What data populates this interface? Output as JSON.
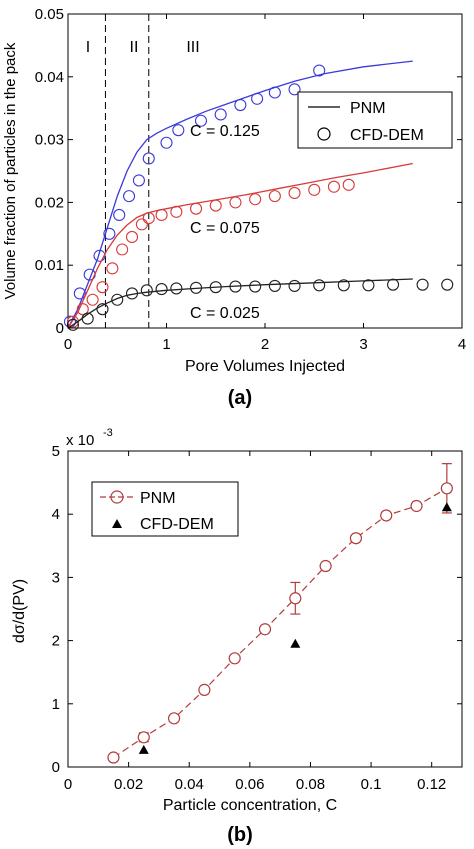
{
  "chart_data": [
    {
      "panel_label": "(a)",
      "type": "scatter",
      "xlabel": "Pore Volumes Injected",
      "ylabel": "Volume fraction of particles in the pack",
      "xlim": [
        0,
        4
      ],
      "ylim": [
        0,
        0.05
      ],
      "xticks": [
        "0",
        "1",
        "2",
        "3",
        "4"
      ],
      "yticks": [
        "0",
        "0.01",
        "0.02",
        "0.03",
        "0.04",
        "0.05"
      ],
      "grid": false,
      "legend_position": "top-right",
      "legend": [
        {
          "label": "PNM",
          "marker": "line"
        },
        {
          "label": "CFD-DEM",
          "marker": "circle"
        }
      ],
      "regions": [
        {
          "label": "I",
          "x_from": 0,
          "x_to": 0.38
        },
        {
          "label": "II",
          "x_from": 0.38,
          "x_to": 0.82
        },
        {
          "label": "III",
          "x_from": 0.82,
          "x_to": 4
        }
      ],
      "region_boundaries_x": [
        0.38,
        0.82
      ],
      "series": [
        {
          "annotation": "C = 0.125",
          "color": "#3a3adb",
          "pnm_x": [
            0,
            0.1,
            0.2,
            0.3,
            0.4,
            0.5,
            0.6,
            0.7,
            0.8,
            0.9,
            1.0,
            1.2,
            1.4,
            1.6,
            1.8,
            2.0,
            2.3,
            2.6,
            3.0,
            3.5
          ],
          "pnm_y": [
            0,
            0.003,
            0.007,
            0.011,
            0.016,
            0.021,
            0.025,
            0.028,
            0.03,
            0.031,
            0.0318,
            0.0332,
            0.0345,
            0.0356,
            0.0367,
            0.0378,
            0.0393,
            0.0405,
            0.0416,
            0.0425
          ],
          "cfd_x": [
            0.02,
            0.12,
            0.22,
            0.32,
            0.42,
            0.52,
            0.62,
            0.72,
            0.82,
            1.0,
            1.12,
            1.35,
            1.55,
            1.75,
            1.92,
            2.1,
            2.3,
            2.55
          ],
          "cfd_y": [
            0.001,
            0.0055,
            0.0085,
            0.0115,
            0.015,
            0.018,
            0.021,
            0.0235,
            0.027,
            0.0295,
            0.0315,
            0.033,
            0.034,
            0.0355,
            0.0365,
            0.0375,
            0.038,
            0.041
          ]
        },
        {
          "annotation": "C = 0.075",
          "color": "#d83a3a",
          "pnm_x": [
            0,
            0.1,
            0.2,
            0.3,
            0.4,
            0.5,
            0.6,
            0.7,
            0.8,
            0.9,
            1.0,
            1.2,
            1.5,
            1.8,
            2.1,
            2.4,
            2.7,
            3.0,
            3.5
          ],
          "pnm_y": [
            0,
            0.0025,
            0.006,
            0.0095,
            0.0125,
            0.0148,
            0.0164,
            0.0176,
            0.0183,
            0.0187,
            0.019,
            0.0196,
            0.0204,
            0.0212,
            0.0221,
            0.023,
            0.0239,
            0.0247,
            0.0262
          ],
          "cfd_x": [
            0.05,
            0.15,
            0.25,
            0.35,
            0.45,
            0.55,
            0.65,
            0.75,
            0.82,
            0.95,
            1.1,
            1.3,
            1.5,
            1.7,
            1.9,
            2.1,
            2.3,
            2.5,
            2.7,
            2.85
          ],
          "cfd_y": [
            0.001,
            0.003,
            0.0045,
            0.0065,
            0.0095,
            0.0125,
            0.0145,
            0.0165,
            0.0175,
            0.018,
            0.0185,
            0.019,
            0.0195,
            0.02,
            0.0205,
            0.021,
            0.0215,
            0.022,
            0.0225,
            0.0228
          ]
        },
        {
          "annotation": "C = 0.025",
          "color": "#222222",
          "pnm_x": [
            0,
            0.1,
            0.2,
            0.3,
            0.4,
            0.5,
            0.6,
            0.7,
            0.8,
            1.0,
            1.3,
            1.6,
            2.0,
            2.5,
            3.0,
            3.5
          ],
          "pnm_y": [
            0,
            0.001,
            0.0022,
            0.0032,
            0.004,
            0.0047,
            0.0052,
            0.0055,
            0.0057,
            0.006,
            0.0063,
            0.0066,
            0.0069,
            0.0072,
            0.0075,
            0.0078
          ],
          "cfd_x": [
            0.05,
            0.2,
            0.35,
            0.5,
            0.65,
            0.8,
            0.95,
            1.1,
            1.3,
            1.5,
            1.7,
            1.9,
            2.1,
            2.3,
            2.55,
            2.8,
            3.05,
            3.3,
            3.6,
            3.85
          ],
          "cfd_y": [
            0.0005,
            0.0015,
            0.003,
            0.0045,
            0.0055,
            0.006,
            0.0062,
            0.0063,
            0.0064,
            0.0065,
            0.0066,
            0.0066,
            0.0067,
            0.0067,
            0.0068,
            0.0068,
            0.0068,
            0.0069,
            0.0069,
            0.0069
          ]
        }
      ]
    },
    {
      "panel_label": "(b)",
      "type": "line",
      "xlabel": "Particle concentration, C",
      "ylabel": "dσ/d(PV)",
      "y_multiplier": "x 10",
      "y_multiplier_exp": "-3",
      "xlim": [
        0,
        0.13
      ],
      "ylim": [
        0,
        5
      ],
      "xticks": [
        "0",
        "0.02",
        "0.04",
        "0.06",
        "0.08",
        "0.1",
        "0.12"
      ],
      "yticks": [
        "0",
        "1",
        "2",
        "3",
        "4",
        "5"
      ],
      "grid": false,
      "legend_position": "top-left",
      "legend": [
        {
          "label": "PNM",
          "marker": "circle-dashed-line",
          "color": "#b23c3c"
        },
        {
          "label": "CFD-DEM",
          "marker": "triangle",
          "color": "#000000"
        }
      ],
      "series": [
        {
          "name": "PNM",
          "color": "#b23c3c",
          "x": [
            0.015,
            0.025,
            0.035,
            0.045,
            0.055,
            0.065,
            0.075,
            0.085,
            0.095,
            0.105,
            0.115,
            0.125
          ],
          "y": [
            0.15,
            0.47,
            0.77,
            1.22,
            1.72,
            2.18,
            2.67,
            3.18,
            3.62,
            3.98,
            4.13,
            4.41
          ],
          "error_bars": [
            {
              "x": 0.025,
              "low": 0.4,
              "high": 0.54
            },
            {
              "x": 0.075,
              "low": 2.42,
              "high": 2.92
            },
            {
              "x": 0.125,
              "low": 4.02,
              "high": 4.8
            }
          ]
        },
        {
          "name": "CFD-DEM",
          "color": "#000000",
          "x": [
            0.025,
            0.075,
            0.125
          ],
          "y": [
            0.27,
            1.95,
            4.11
          ]
        }
      ]
    }
  ]
}
